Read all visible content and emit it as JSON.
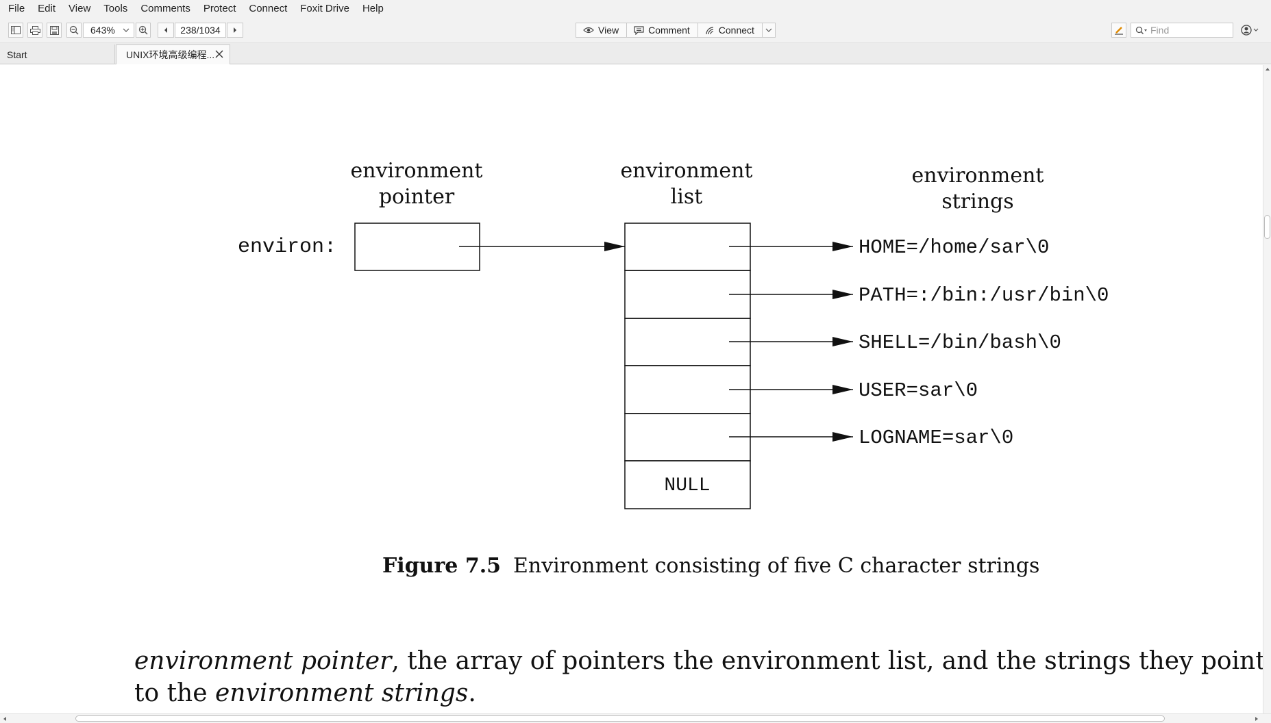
{
  "menu": [
    "File",
    "Edit",
    "View",
    "Tools",
    "Comments",
    "Protect",
    "Connect",
    "Foxit Drive",
    "Help"
  ],
  "toolbar": {
    "zoom": "643%",
    "page": "238/1034",
    "view_label": "View",
    "comment_label": "Comment",
    "connect_label": "Connect",
    "find_placeholder": "Find"
  },
  "tabs": {
    "start": "Start",
    "doc": "UNIX环境高级编程..."
  },
  "diagram": {
    "pointer_header": [
      "environment",
      "pointer"
    ],
    "list_header": [
      "environment",
      "list"
    ],
    "strings_header": [
      "environment",
      "strings"
    ],
    "var_label": "environ:",
    "strings": [
      "HOME=/home/sar\\0",
      "PATH=:/bin:/usr/bin\\0",
      "SHELL=/bin/bash\\0",
      "USER=sar\\0",
      "LOGNAME=sar\\0"
    ],
    "null_label": "NULL"
  },
  "caption": {
    "figure": "Figure 7.5",
    "text": "Environment consisting of five C character strings"
  },
  "body": {
    "line1_italic": "environment pointer",
    "line1_rest": ", the array of pointers the environment list, and the strings they point",
    "line2_start": "to the ",
    "line2_italic": "environment strings",
    "line2_end": "."
  }
}
